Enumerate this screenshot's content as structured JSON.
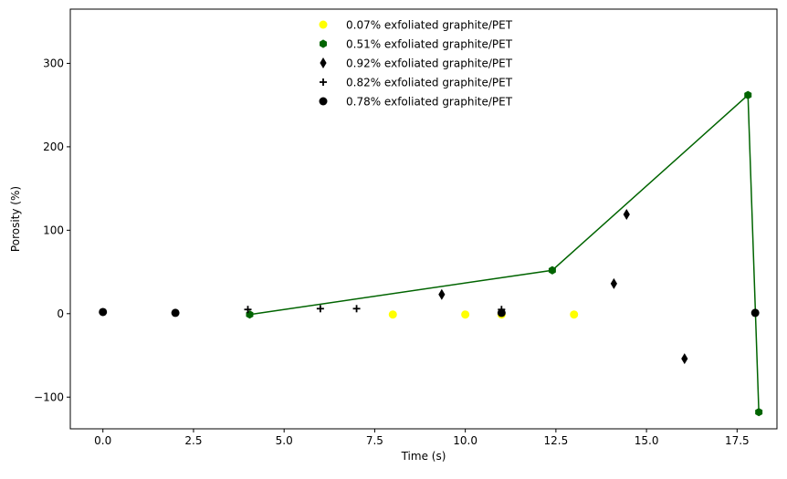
{
  "chart_data": {
    "type": "scatter",
    "title": "",
    "xlabel": "Time (s)",
    "ylabel": "Porosity (%)",
    "xlim": [
      -0.9,
      18.6
    ],
    "ylim": [
      -138,
      365
    ],
    "xticks": [
      0.0,
      2.5,
      5.0,
      7.5,
      10.0,
      12.5,
      15.0,
      17.5
    ],
    "xtick_labels": [
      "0.0",
      "2.5",
      "5.0",
      "7.5",
      "10.0",
      "12.5",
      "15.0",
      "17.5"
    ],
    "yticks": [
      -100,
      0,
      100,
      200,
      300
    ],
    "ytick_labels": [
      "−100",
      "0",
      "100",
      "200",
      "300"
    ],
    "grid": false,
    "legend_position": "top-center",
    "series": [
      {
        "name": "0.07% exfoliated graphite/PET",
        "color": "#ffff00",
        "marker": "circle",
        "line": false,
        "x": [
          8.0,
          10.0,
          11.0,
          13.0
        ],
        "y": [
          -1,
          -1,
          -1,
          -1
        ]
      },
      {
        "name": "0.51% exfoliated graphite/PET",
        "color": "#006400",
        "marker": "hexagon",
        "line": true,
        "x": [
          4.05,
          12.4,
          17.8,
          18.1
        ],
        "y": [
          -1,
          52,
          262,
          -118
        ]
      },
      {
        "name": "0.92% exfoliated graphite/PET",
        "color": "#000000",
        "marker": "thin-diamond",
        "line": false,
        "x": [
          9.35,
          14.1,
          14.45,
          16.05
        ],
        "y": [
          23,
          36,
          119,
          -54
        ]
      },
      {
        "name": "0.82% exfoliated graphite/PET",
        "color": "#000000",
        "marker": "plus",
        "line": false,
        "x": [
          4.0,
          6.0,
          7.0,
          11.0
        ],
        "y": [
          5,
          6,
          6,
          5
        ]
      },
      {
        "name": "0.78% exfoliated graphite/PET",
        "color": "#000000",
        "marker": "circle",
        "line": false,
        "x": [
          0.0,
          2.0,
          11.0,
          18.0
        ],
        "y": [
          2,
          1,
          1,
          1
        ]
      }
    ]
  }
}
